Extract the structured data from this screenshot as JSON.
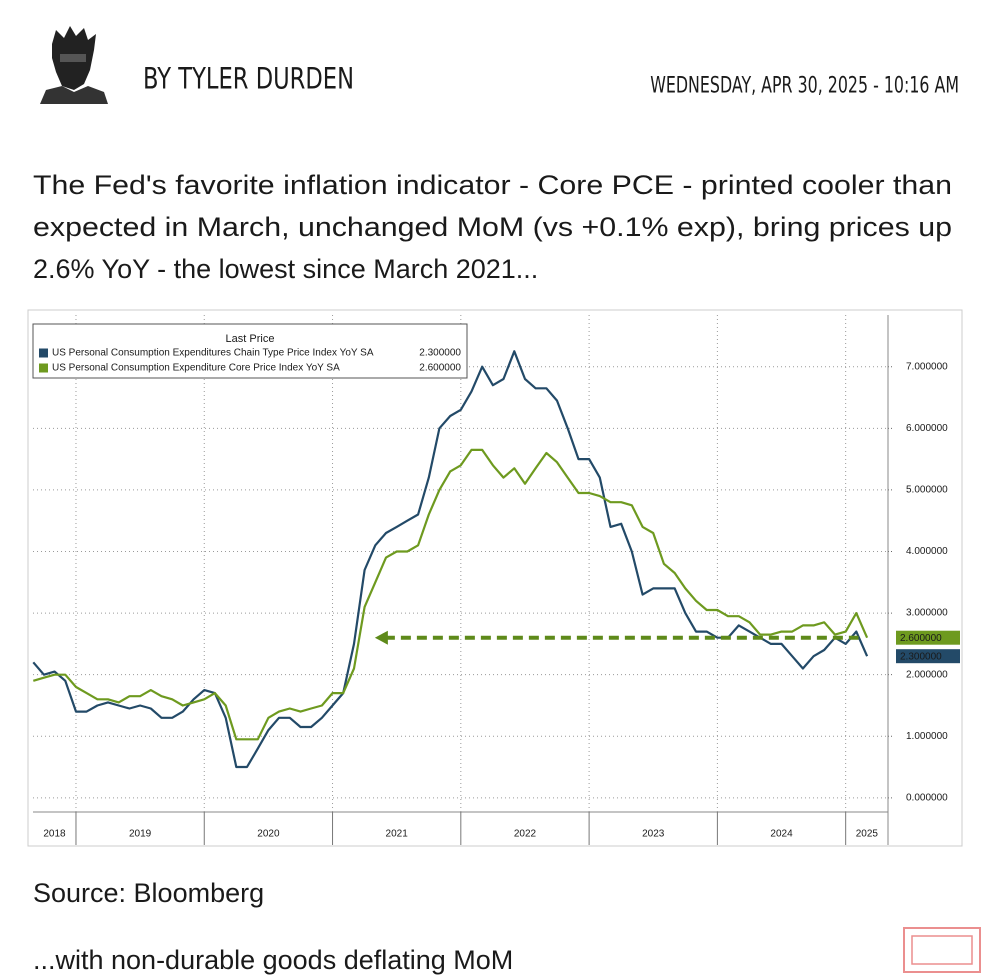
{
  "header": {
    "byline": "BY TYLER DURDEN",
    "date": "WEDNESDAY, APR 30, 2025 - 10:16 AM"
  },
  "body": {
    "paragraph": [
      "The Fed's favorite inflation indicator - Core PCE - printed cooler than",
      "expected in March, unchanged MoM (vs +0.1% exp), bring prices up",
      "2.6% YoY - the lowest since March 2021..."
    ],
    "source": "Source: Bloomberg",
    "footer": "...with non-durable goods deflating MoM"
  },
  "chart_data": {
    "type": "line",
    "legend_title": "Last Price",
    "legend": "upper left",
    "grid": true,
    "x": [
      2018.667,
      2018.75,
      2018.833,
      2018.917,
      2019,
      2019.083,
      2019.167,
      2019.25,
      2019.333,
      2019.417,
      2019.5,
      2019.583,
      2019.667,
      2019.75,
      2019.833,
      2019.917,
      2020,
      2020.083,
      2020.167,
      2020.25,
      2020.333,
      2020.417,
      2020.5,
      2020.583,
      2020.667,
      2020.75,
      2020.833,
      2020.917,
      2021,
      2021.083,
      2021.167,
      2021.25,
      2021.333,
      2021.417,
      2021.5,
      2021.583,
      2021.667,
      2021.75,
      2021.833,
      2021.917,
      2022,
      2022.083,
      2022.167,
      2022.25,
      2022.333,
      2022.417,
      2022.5,
      2022.583,
      2022.667,
      2022.75,
      2022.833,
      2022.917,
      2023,
      2023.083,
      2023.167,
      2023.25,
      2023.333,
      2023.417,
      2023.5,
      2023.583,
      2023.667,
      2023.75,
      2023.833,
      2023.917,
      2024,
      2024.083,
      2024.167,
      2024.25,
      2024.333,
      2024.417,
      2024.5,
      2024.583,
      2024.667,
      2024.75,
      2024.833,
      2024.917,
      2025,
      2025.083,
      2025.167
    ],
    "series": [
      {
        "name": "US Personal Consumption Expenditures Chain Type Price Index YoY SA",
        "color": "#234a68",
        "last_price": {
          "value": 2.3,
          "label": "2.300000"
        },
        "values": [
          2.2,
          2.0,
          2.05,
          1.9,
          1.4,
          1.4,
          1.5,
          1.55,
          1.5,
          1.45,
          1.5,
          1.45,
          1.3,
          1.3,
          1.4,
          1.6,
          1.75,
          1.7,
          1.3,
          0.5,
          0.5,
          0.8,
          1.1,
          1.3,
          1.3,
          1.15,
          1.15,
          1.3,
          1.5,
          1.7,
          2.5,
          3.7,
          4.1,
          4.3,
          4.4,
          4.5,
          4.6,
          5.2,
          6.0,
          6.2,
          6.3,
          6.6,
          7.0,
          6.7,
          6.8,
          7.25,
          6.8,
          6.65,
          6.65,
          6.45,
          6.0,
          5.5,
          5.5,
          5.2,
          4.4,
          4.45,
          4.0,
          3.3,
          3.4,
          3.4,
          3.4,
          3.0,
          2.7,
          2.7,
          2.6,
          2.6,
          2.8,
          2.7,
          2.6,
          2.5,
          2.5,
          2.3,
          2.1,
          2.3,
          2.4,
          2.6,
          2.5,
          2.7,
          2.3
        ]
      },
      {
        "name": "US Personal Consumption Expenditure Core Price Index YoY SA",
        "color": "#6e9a1f",
        "last_price": {
          "value": 2.6,
          "label": "2.600000"
        },
        "values": [
          1.9,
          1.95,
          2.0,
          2.0,
          1.8,
          1.7,
          1.6,
          1.6,
          1.55,
          1.65,
          1.65,
          1.75,
          1.65,
          1.6,
          1.5,
          1.55,
          1.6,
          1.7,
          1.5,
          0.95,
          0.95,
          0.95,
          1.3,
          1.4,
          1.45,
          1.4,
          1.45,
          1.5,
          1.7,
          1.7,
          2.1,
          3.1,
          3.5,
          3.9,
          4.0,
          4.0,
          4.1,
          4.6,
          5.0,
          5.3,
          5.4,
          5.65,
          5.65,
          5.4,
          5.2,
          5.35,
          5.1,
          5.35,
          5.6,
          5.45,
          5.2,
          4.95,
          4.95,
          4.9,
          4.8,
          4.8,
          4.75,
          4.4,
          4.3,
          3.8,
          3.65,
          3.4,
          3.2,
          3.05,
          3.05,
          2.95,
          2.95,
          2.85,
          2.65,
          2.65,
          2.7,
          2.7,
          2.8,
          2.8,
          2.85,
          2.65,
          2.7,
          3.0,
          2.6
        ]
      }
    ],
    "annotation_line": {
      "y": 2.6,
      "x": [
        2021.33,
        2025.1
      ],
      "color": "#5e8a1a"
    },
    "xlim": [
      2018.665,
      2025.33
    ],
    "xticks": [
      {
        "value": 2018,
        "label": "2018"
      },
      {
        "value": 2019,
        "label": "2019"
      },
      {
        "value": 2020,
        "label": "2020"
      },
      {
        "value": 2021,
        "label": "2021"
      },
      {
        "value": 2022,
        "label": "2022"
      },
      {
        "value": 2023,
        "label": "2023"
      },
      {
        "value": 2024,
        "label": "2024"
      },
      {
        "value": 2025,
        "label": "2025"
      }
    ],
    "ylim": [
      -0.23,
      7.84
    ],
    "yticks": [
      {
        "value": 0,
        "label": "0.000000"
      },
      {
        "value": 1,
        "label": "1.000000"
      },
      {
        "value": 2,
        "label": "2.000000"
      },
      {
        "value": 3,
        "label": "3.000000"
      },
      {
        "value": 4,
        "label": "4.000000"
      },
      {
        "value": 5,
        "label": "5.000000"
      },
      {
        "value": 6,
        "label": "6.000000"
      },
      {
        "value": 7,
        "label": "7.000000"
      }
    ]
  }
}
